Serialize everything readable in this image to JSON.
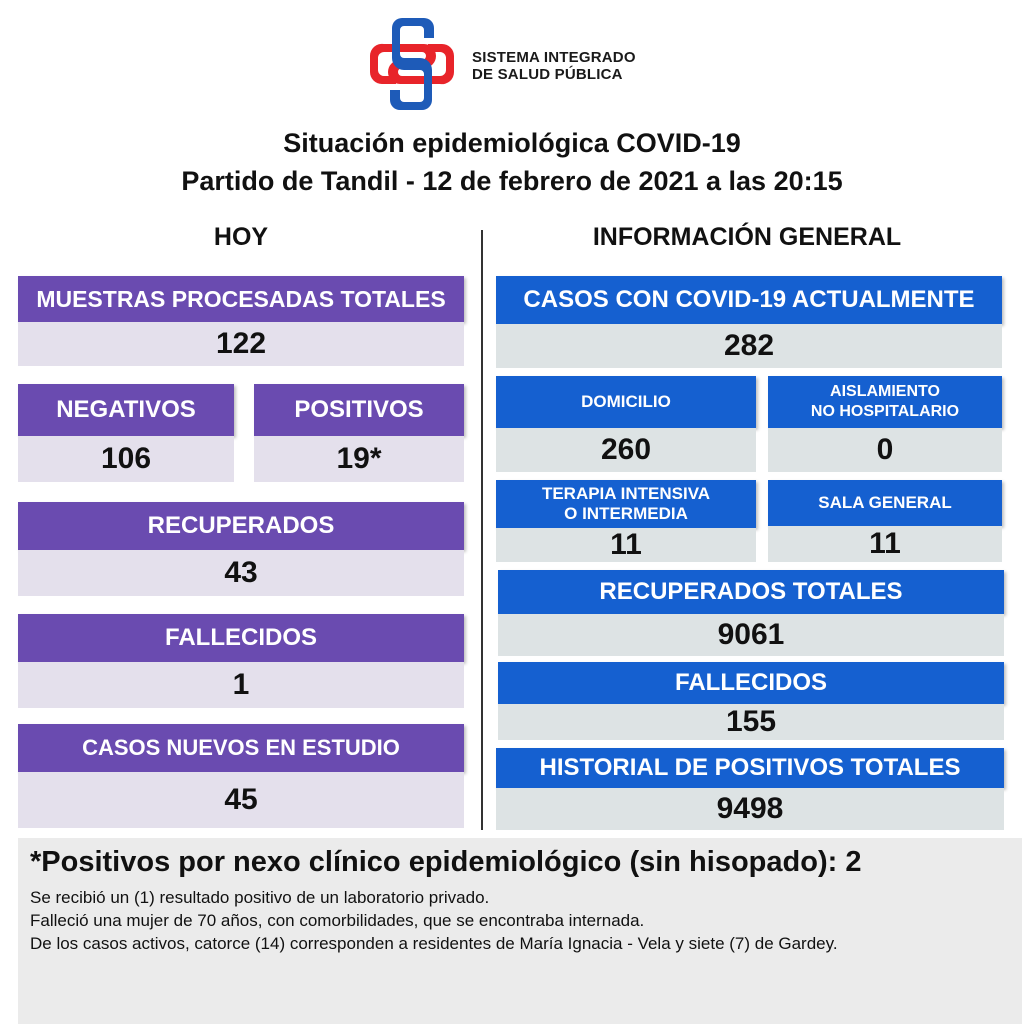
{
  "logo": {
    "line1": "SISTEMA INTEGRADO",
    "line2": "DE SALUD PÚBLICA",
    "colors": {
      "red": "#e8242a",
      "blue": "#1e5bb8"
    }
  },
  "title": {
    "line1": "Situación epidemiológica COVID-19",
    "line2": "Partido de Tandil - 12 de febrero de 2021 a las 20:15"
  },
  "hoy": {
    "heading": "HOY",
    "muestras": {
      "label": "MUESTRAS PROCESADAS TOTALES",
      "value": "122"
    },
    "negativos": {
      "label": "NEGATIVOS",
      "value": "106"
    },
    "positivos": {
      "label": "POSITIVOS",
      "value": "19*"
    },
    "recuperados": {
      "label": "RECUPERADOS",
      "value": "43"
    },
    "fallecidos": {
      "label": "FALLECIDOS",
      "value": "1"
    },
    "casos_nuevos": {
      "label": "CASOS NUEVOS EN ESTUDIO",
      "value": "45"
    }
  },
  "general": {
    "heading": "INFORMACIÓN GENERAL",
    "casos_actuales": {
      "label": "CASOS CON COVID-19 ACTUALMENTE",
      "value": "282"
    },
    "domicilio": {
      "label": "DOMICILIO",
      "value": "260"
    },
    "aislamiento": {
      "label_line1": "AISLAMIENTO",
      "label_line2": "NO HOSPITALARIO",
      "value": "0"
    },
    "terapia": {
      "label_line1": "TERAPIA INTENSIVA",
      "label_line2": "O INTERMEDIA",
      "value": "11"
    },
    "sala_general": {
      "label": "SALA GENERAL",
      "value": "11"
    },
    "recuperados_totales": {
      "label": "RECUPERADOS TOTALES",
      "value": "9061"
    },
    "fallecidos": {
      "label": "FALLECIDOS",
      "value": "155"
    },
    "historial": {
      "label": "HISTORIAL DE POSITIVOS TOTALES",
      "value": "9498"
    }
  },
  "note": {
    "heading": "*Positivos por nexo clínico epidemiológico (sin hisopado): 2",
    "lines": [
      "Se recibió un (1) resultado positivo de un laboratorio privado.",
      "Falleció una mujer de 70 años, con comorbilidades, que se encontraba internada.",
      "De los casos activos, catorce (14) corresponden a residentes de María Ignacia - Vela y siete (7) de Gardey."
    ]
  },
  "colors": {
    "purple": "#6a4bb0",
    "blue": "#1560d0",
    "purple_light": "#e4e0ec",
    "blue_light": "#dde3e4"
  }
}
